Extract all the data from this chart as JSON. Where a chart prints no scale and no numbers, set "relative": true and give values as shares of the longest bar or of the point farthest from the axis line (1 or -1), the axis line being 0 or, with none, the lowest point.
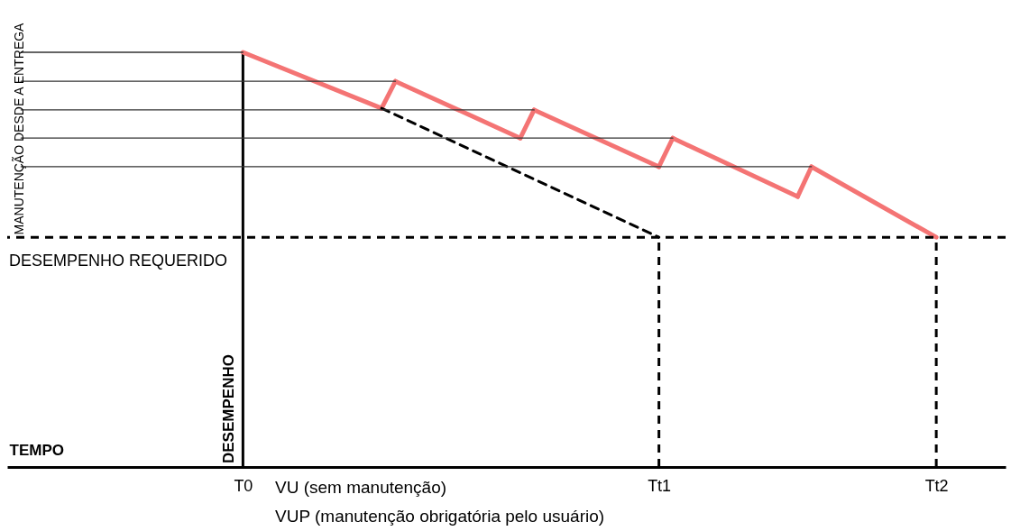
{
  "chart_data": {
    "type": "line",
    "relative": true,
    "xlabel": "TEMPO",
    "ylabel": "DESEMPENHO",
    "annotations": [
      "MANUTENÇÃO DESDE A ENTREGA",
      "VU (sem manutenção)",
      "VUP (manutenção obrigatória pelo usuário)"
    ],
    "categories": [
      null,
      null,
      null,
      null,
      null,
      null,
      null,
      null,
      null,
      null,
      null,
      null,
      null,
      null,
      null,
      null,
      "T0",
      null,
      null,
      null,
      null,
      null,
      null,
      null,
      null,
      null,
      null,
      null,
      null,
      null,
      null,
      null,
      null,
      null,
      null,
      null,
      null,
      null,
      null,
      null,
      null,
      null,
      null,
      null,
      null,
      null,
      "Tt1",
      null,
      null,
      null,
      null,
      null,
      null,
      null,
      null,
      null,
      null,
      null,
      null,
      null,
      null,
      null,
      null,
      null,
      null,
      null,
      "Tt2",
      null,
      null,
      null,
      null
    ],
    "series": [
      {
        "color": "#f47474",
        "values": [
          null,
          null,
          null,
          null,
          null,
          null,
          null,
          null,
          null,
          null,
          null,
          null,
          null,
          null,
          null,
          null,
          1,
          null,
          null,
          null,
          null,
          null,
          null,
          null,
          null,
          null,
          0.865,
          null,
          null,
          null,
          null,
          null,
          null,
          null,
          null,
          null,
          null,
          null,
          null,
          null,
          null,
          null,
          null,
          null,
          null,
          null,
          null,
          null,
          null,
          null,
          null,
          null,
          null,
          null,
          null,
          null,
          null,
          null,
          null,
          null,
          null,
          null,
          null,
          null,
          null,
          null,
          null,
          null,
          null,
          null,
          null
        ]
      },
      {
        "color": "#f47474",
        "values": [
          null,
          null,
          null,
          null,
          null,
          null,
          null,
          null,
          null,
          null,
          null,
          null,
          null,
          null,
          null,
          null,
          null,
          null,
          null,
          null,
          null,
          null,
          null,
          null,
          null,
          null,
          0.865,
          0.93,
          null,
          null,
          null,
          null,
          null,
          null,
          null,
          null,
          null,
          null,
          null,
          null,
          null,
          null,
          null,
          null,
          null,
          null,
          null,
          null,
          null,
          null,
          null,
          null,
          null,
          null,
          null,
          null,
          null,
          null,
          null,
          null,
          null,
          null,
          null,
          null,
          null,
          null,
          null,
          null,
          null,
          null,
          null
        ]
      },
      {
        "color": "#f47474",
        "values": [
          null,
          null,
          null,
          null,
          null,
          null,
          null,
          null,
          null,
          null,
          null,
          null,
          null,
          null,
          null,
          null,
          null,
          null,
          null,
          null,
          null,
          null,
          null,
          null,
          null,
          null,
          null,
          0.93,
          null,
          null,
          null,
          null,
          null,
          null,
          null,
          null,
          0.793,
          null,
          null,
          null,
          null,
          null,
          null,
          null,
          null,
          null,
          null,
          null,
          null,
          null,
          null,
          null,
          null,
          null,
          null,
          null,
          null,
          null,
          null,
          null,
          null,
          null,
          null,
          null,
          null,
          null,
          null,
          null,
          null,
          null,
          null
        ]
      },
      {
        "color": "#f47474",
        "values": [
          null,
          null,
          null,
          null,
          null,
          null,
          null,
          null,
          null,
          null,
          null,
          null,
          null,
          null,
          null,
          null,
          null,
          null,
          null,
          null,
          null,
          null,
          null,
          null,
          null,
          null,
          null,
          null,
          null,
          null,
          null,
          null,
          null,
          null,
          null,
          null,
          0.793,
          0.861,
          null,
          null,
          null,
          null,
          null,
          null,
          null,
          null,
          null,
          null,
          null,
          null,
          null,
          null,
          null,
          null,
          null,
          null,
          null,
          null,
          null,
          null,
          null,
          null,
          null,
          null,
          null,
          null,
          null,
          null,
          null,
          null,
          null
        ]
      },
      {
        "color": "#f47474",
        "values": [
          null,
          null,
          null,
          null,
          null,
          null,
          null,
          null,
          null,
          null,
          null,
          null,
          null,
          null,
          null,
          null,
          null,
          null,
          null,
          null,
          null,
          null,
          null,
          null,
          null,
          null,
          null,
          null,
          null,
          null,
          null,
          null,
          null,
          null,
          null,
          null,
          null,
          0.861,
          null,
          null,
          null,
          null,
          null,
          null,
          null,
          null,
          0.724,
          null,
          null,
          null,
          null,
          null,
          null,
          null,
          null,
          null,
          null,
          null,
          null,
          null,
          null,
          null,
          null,
          null,
          null,
          null,
          null,
          null,
          null,
          null,
          null
        ]
      },
      {
        "color": "#f47474",
        "values": [
          null,
          null,
          null,
          null,
          null,
          null,
          null,
          null,
          null,
          null,
          null,
          null,
          null,
          null,
          null,
          null,
          null,
          null,
          null,
          null,
          null,
          null,
          null,
          null,
          null,
          null,
          null,
          null,
          null,
          null,
          null,
          null,
          null,
          null,
          null,
          null,
          null,
          null,
          null,
          null,
          null,
          null,
          null,
          null,
          null,
          null,
          0.724,
          0.793,
          null,
          null,
          null,
          null,
          null,
          null,
          null,
          null,
          null,
          null,
          null,
          null,
          null,
          null,
          null,
          null,
          null,
          null,
          null,
          null,
          null,
          null,
          null
        ]
      },
      {
        "color": "#f47474",
        "values": [
          null,
          null,
          null,
          null,
          null,
          null,
          null,
          null,
          null,
          null,
          null,
          null,
          null,
          null,
          null,
          null,
          null,
          null,
          null,
          null,
          null,
          null,
          null,
          null,
          null,
          null,
          null,
          null,
          null,
          null,
          null,
          null,
          null,
          null,
          null,
          null,
          null,
          null,
          null,
          null,
          null,
          null,
          null,
          null,
          null,
          null,
          null,
          0.793,
          null,
          null,
          null,
          null,
          null,
          null,
          null,
          null,
          0.652,
          null,
          null,
          null,
          null,
          null,
          null,
          null,
          null,
          null,
          null,
          null,
          null,
          null,
          null
        ]
      },
      {
        "color": "#f47474",
        "values": [
          null,
          null,
          null,
          null,
          null,
          null,
          null,
          null,
          null,
          null,
          null,
          null,
          null,
          null,
          null,
          null,
          null,
          null,
          null,
          null,
          null,
          null,
          null,
          null,
          null,
          null,
          null,
          null,
          null,
          null,
          null,
          null,
          null,
          null,
          null,
          null,
          null,
          null,
          null,
          null,
          null,
          null,
          null,
          null,
          null,
          null,
          null,
          null,
          null,
          null,
          null,
          null,
          null,
          null,
          null,
          null,
          0.652,
          0.724,
          null,
          null,
          null,
          null,
          null,
          null,
          null,
          null,
          null,
          null,
          null,
          null,
          null
        ]
      },
      {
        "color": "#f47474",
        "values": [
          null,
          null,
          null,
          null,
          null,
          null,
          null,
          null,
          null,
          null,
          null,
          null,
          null,
          null,
          null,
          null,
          null,
          null,
          null,
          null,
          null,
          null,
          null,
          null,
          null,
          null,
          null,
          null,
          null,
          null,
          null,
          null,
          null,
          null,
          null,
          null,
          null,
          null,
          null,
          null,
          null,
          null,
          null,
          null,
          null,
          null,
          null,
          null,
          null,
          null,
          null,
          null,
          null,
          null,
          null,
          null,
          null,
          0.724,
          null,
          null,
          null,
          null,
          null,
          null,
          null,
          null,
          0.554,
          null,
          null,
          null,
          null
        ]
      },
      {
        "color": "#000000",
        "line_style": "dashed",
        "values": [
          null,
          null,
          null,
          null,
          null,
          null,
          null,
          null,
          null,
          null,
          null,
          null,
          null,
          null,
          null,
          null,
          null,
          null,
          null,
          null,
          null,
          null,
          null,
          null,
          null,
          null,
          0.865,
          null,
          null,
          null,
          null,
          null,
          null,
          null,
          null,
          null,
          null,
          null,
          null,
          null,
          null,
          null,
          null,
          null,
          null,
          null,
          0.554,
          null,
          null,
          null,
          null,
          null,
          null,
          null,
          null,
          null,
          null,
          null,
          null,
          null,
          null,
          null,
          null,
          null,
          null,
          null,
          null,
          null,
          null,
          null,
          null
        ]
      },
      {
        "color": "#333333",
        "values": [
          1,
          1,
          1,
          1,
          1,
          1,
          1,
          1,
          1,
          1,
          1,
          1,
          1,
          1,
          1,
          1,
          1,
          null,
          null,
          null,
          null,
          null,
          null,
          null,
          null,
          null,
          null,
          null,
          null,
          null,
          null,
          null,
          null,
          null,
          null,
          null,
          null,
          null,
          null,
          null,
          null,
          null,
          null,
          null,
          null,
          null,
          null,
          null,
          null,
          null,
          null,
          null,
          null,
          null,
          null,
          null,
          null,
          null,
          null,
          null,
          null,
          null,
          null,
          null,
          null,
          null,
          null,
          null,
          null,
          null,
          null
        ]
      },
      {
        "color": "#333333",
        "values": [
          0.93,
          0.93,
          0.93,
          0.93,
          0.93,
          0.93,
          0.93,
          0.93,
          0.93,
          0.93,
          0.93,
          0.93,
          0.93,
          0.93,
          0.93,
          0.93,
          0.93,
          0.93,
          0.93,
          0.93,
          0.93,
          0.93,
          0.93,
          0.93,
          0.93,
          0.93,
          0.93,
          0.93,
          null,
          null,
          null,
          null,
          null,
          null,
          null,
          null,
          null,
          null,
          null,
          null,
          null,
          null,
          null,
          null,
          null,
          null,
          null,
          null,
          null,
          null,
          null,
          null,
          null,
          null,
          null,
          null,
          null,
          null,
          null,
          null,
          null,
          null,
          null,
          null,
          null,
          null,
          null,
          null,
          null,
          null,
          null
        ]
      },
      {
        "color": "#333333",
        "values": [
          0.861,
          0.861,
          0.861,
          0.861,
          0.861,
          0.861,
          0.861,
          0.861,
          0.861,
          0.861,
          0.861,
          0.861,
          0.861,
          0.861,
          0.861,
          0.861,
          0.861,
          0.861,
          0.861,
          0.861,
          0.861,
          0.861,
          0.861,
          0.861,
          0.861,
          0.861,
          0.861,
          0.861,
          0.861,
          0.861,
          0.861,
          0.861,
          0.861,
          0.861,
          0.861,
          0.861,
          0.861,
          0.861,
          null,
          null,
          null,
          null,
          null,
          null,
          null,
          null,
          null,
          null,
          null,
          null,
          null,
          null,
          null,
          null,
          null,
          null,
          null,
          null,
          null,
          null,
          null,
          null,
          null,
          null,
          null,
          null,
          null,
          null,
          null,
          null,
          null
        ]
      },
      {
        "color": "#333333",
        "values": [
          0.793,
          0.793,
          0.793,
          0.793,
          0.793,
          0.793,
          0.793,
          0.793,
          0.793,
          0.793,
          0.793,
          0.793,
          0.793,
          0.793,
          0.793,
          0.793,
          0.793,
          0.793,
          0.793,
          0.793,
          0.793,
          0.793,
          0.793,
          0.793,
          0.793,
          0.793,
          0.793,
          0.793,
          0.793,
          0.793,
          0.793,
          0.793,
          0.793,
          0.793,
          0.793,
          0.793,
          0.793,
          0.793,
          0.793,
          0.793,
          0.793,
          0.793,
          0.793,
          0.793,
          0.793,
          0.793,
          0.793,
          0.793,
          null,
          null,
          null,
          null,
          null,
          null,
          null,
          null,
          null,
          null,
          null,
          null,
          null,
          null,
          null,
          null,
          null,
          null,
          null,
          null,
          null,
          null,
          null
        ]
      },
      {
        "color": "#333333",
        "values": [
          0.724,
          0.724,
          0.724,
          0.724,
          0.724,
          0.724,
          0.724,
          0.724,
          0.724,
          0.724,
          0.724,
          0.724,
          0.724,
          0.724,
          0.724,
          0.724,
          0.724,
          0.724,
          0.724,
          0.724,
          0.724,
          0.724,
          0.724,
          0.724,
          0.724,
          0.724,
          0.724,
          0.724,
          0.724,
          0.724,
          0.724,
          0.724,
          0.724,
          0.724,
          0.724,
          0.724,
          0.724,
          0.724,
          0.724,
          0.724,
          0.724,
          0.724,
          0.724,
          0.724,
          0.724,
          0.724,
          0.724,
          0.724,
          0.724,
          0.724,
          0.724,
          0.724,
          0.724,
          0.724,
          0.724,
          0.724,
          0.724,
          0.724,
          null,
          null,
          null,
          null,
          null,
          null,
          null,
          null,
          null,
          null,
          null,
          null,
          null
        ]
      }
    ],
    "ref_lines": [
      {
        "axis": "y",
        "value": 0.554,
        "label": "DESEMPENHO REQUERIDO",
        "color": "#000000",
        "line_style": "dashed"
      },
      {
        "axis": "x",
        "value": "Tt1",
        "color": "#000000",
        "line_style": "dashed"
      },
      {
        "axis": "x",
        "value": "Tt2",
        "color": "#000000",
        "line_style": "dashed"
      }
    ]
  }
}
